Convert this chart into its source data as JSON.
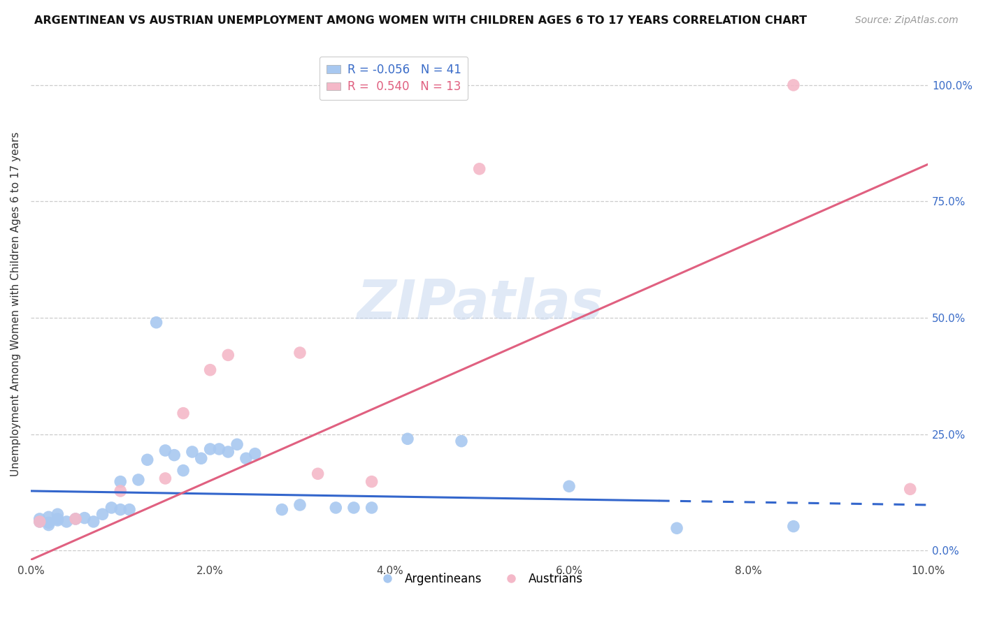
{
  "title": "ARGENTINEAN VS AUSTRIAN UNEMPLOYMENT AMONG WOMEN WITH CHILDREN AGES 6 TO 17 YEARS CORRELATION CHART",
  "source": "Source: ZipAtlas.com",
  "ylabel": "Unemployment Among Women with Children Ages 6 to 17 years",
  "xlim": [
    0.0,
    0.1
  ],
  "ylim": [
    -0.02,
    1.08
  ],
  "xtick_labels": [
    "0.0%",
    "2.0%",
    "4.0%",
    "6.0%",
    "8.0%",
    "10.0%"
  ],
  "xtick_vals": [
    0.0,
    0.02,
    0.04,
    0.06,
    0.08,
    0.1
  ],
  "ytick_labels": [
    "100.0%",
    "75.0%",
    "50.0%",
    "25.0%",
    "0.0%"
  ],
  "ytick_vals": [
    1.0,
    0.75,
    0.5,
    0.25,
    0.0
  ],
  "argentinean_color": "#a8c8f0",
  "austrian_color": "#f4b8c8",
  "arg_line_color": "#3366cc",
  "aust_line_color": "#e06080",
  "arg_line_dash_start": 0.07,
  "R_arg": -0.056,
  "N_arg": 41,
  "R_aust": 0.54,
  "N_aust": 13,
  "watermark": "ZIPatlas",
  "arg_reg_intercept": 0.128,
  "arg_reg_slope": -0.3,
  "aust_reg_intercept": -0.02,
  "aust_reg_slope": 8.5,
  "arg_scatter_x": [
    0.001,
    0.001,
    0.002,
    0.002,
    0.002,
    0.003,
    0.003,
    0.003,
    0.004,
    0.005,
    0.006,
    0.007,
    0.008,
    0.009,
    0.01,
    0.01,
    0.011,
    0.012,
    0.013,
    0.014,
    0.015,
    0.016,
    0.017,
    0.018,
    0.019,
    0.02,
    0.021,
    0.022,
    0.023,
    0.024,
    0.025,
    0.028,
    0.03,
    0.034,
    0.036,
    0.038,
    0.042,
    0.048,
    0.06,
    0.072,
    0.085
  ],
  "arg_scatter_y": [
    0.062,
    0.068,
    0.06,
    0.055,
    0.072,
    0.065,
    0.068,
    0.078,
    0.062,
    0.068,
    0.07,
    0.062,
    0.078,
    0.092,
    0.088,
    0.148,
    0.088,
    0.152,
    0.195,
    0.49,
    0.215,
    0.205,
    0.172,
    0.212,
    0.198,
    0.218,
    0.218,
    0.212,
    0.228,
    0.198,
    0.208,
    0.088,
    0.098,
    0.092,
    0.092,
    0.092,
    0.24,
    0.235,
    0.138,
    0.048,
    0.052
  ],
  "aust_scatter_x": [
    0.001,
    0.005,
    0.01,
    0.015,
    0.017,
    0.02,
    0.022,
    0.03,
    0.032,
    0.038,
    0.05,
    0.085,
    0.098
  ],
  "aust_scatter_y": [
    0.062,
    0.068,
    0.128,
    0.155,
    0.295,
    0.388,
    0.42,
    0.425,
    0.165,
    0.148,
    0.82,
    1.0,
    0.132
  ]
}
